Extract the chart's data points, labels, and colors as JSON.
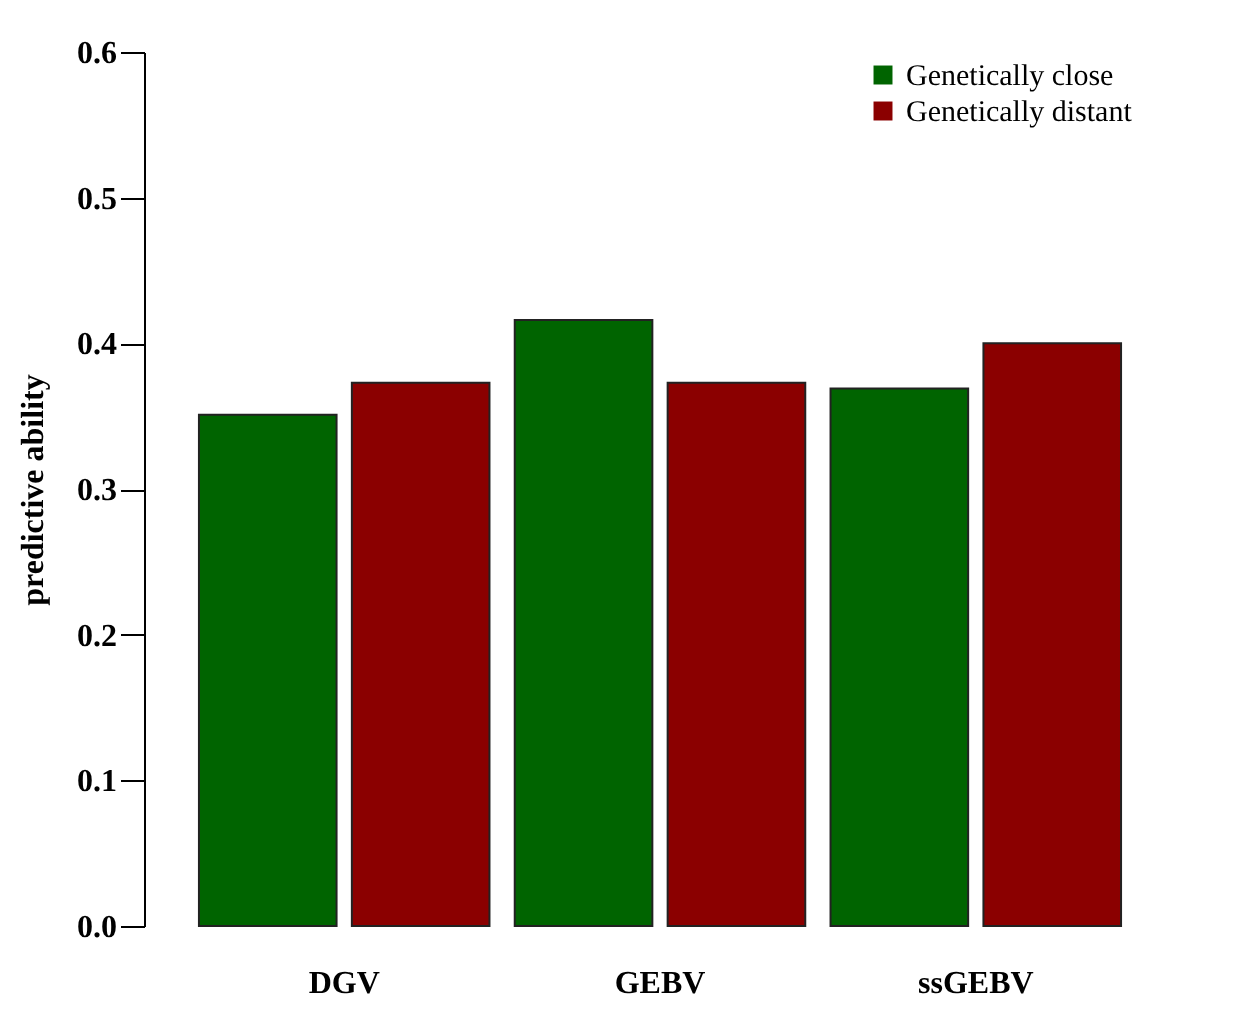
{
  "chart_data": {
    "type": "bar",
    "ylabel": "predictive ability",
    "categories": [
      "DGV",
      "GEBV",
      "ssGEBV"
    ],
    "series": [
      {
        "name": "Genetically close",
        "color": "#006400",
        "values": [
          0.351,
          0.416,
          0.369
        ]
      },
      {
        "name": "Genetically distant",
        "color": "#8b0000",
        "values": [
          0.373,
          0.373,
          0.4
        ]
      }
    ],
    "ylim": [
      0,
      0.6
    ],
    "yticks": [
      {
        "value": 0,
        "label": "0.0"
      },
      {
        "value": 0.1,
        "label": "0.1"
      },
      {
        "value": 0.2,
        "label": "0.2"
      },
      {
        "value": 0.3,
        "label": "0.3"
      },
      {
        "value": 0.4,
        "label": "0.4"
      },
      {
        "value": 0.5,
        "label": "0.5"
      },
      {
        "value": 0.6,
        "label": "0.6"
      }
    ],
    "grid": false,
    "legend": "top right"
  }
}
